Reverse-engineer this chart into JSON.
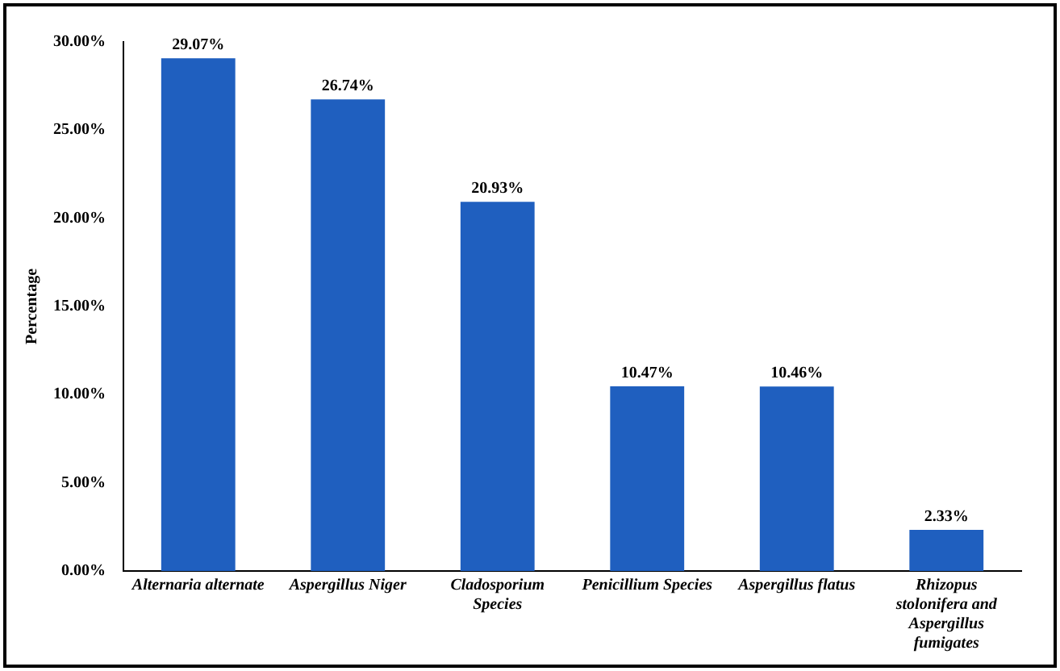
{
  "chart_data": {
    "type": "bar",
    "ylabel": "Percentage",
    "categories": [
      "Alternaria alternate",
      "Aspergillus Niger",
      "Cladosporium Species",
      "Penicillium Species",
      "Aspergillus flatus",
      "Rhizopus stolonifera and Aspergillus fumigates"
    ],
    "values": [
      29.07,
      26.74,
      20.93,
      10.47,
      10.46,
      2.33
    ],
    "value_labels": [
      "29.07%",
      "26.74%",
      "20.93%",
      "10.47%",
      "10.46%",
      "2.33%"
    ],
    "color": "#1f5fbf",
    "ylim": [
      0,
      30
    ],
    "yticks": [
      {
        "value": 0,
        "label": "0.00%"
      },
      {
        "value": 5,
        "label": "5.00%"
      },
      {
        "value": 10,
        "label": "10.00%"
      },
      {
        "value": 15,
        "label": "15.00%"
      },
      {
        "value": 20,
        "label": "20.00%"
      },
      {
        "value": 25,
        "label": "25.00%"
      },
      {
        "value": 30,
        "label": "30.00%"
      }
    ],
    "grid": false,
    "legend": false
  }
}
